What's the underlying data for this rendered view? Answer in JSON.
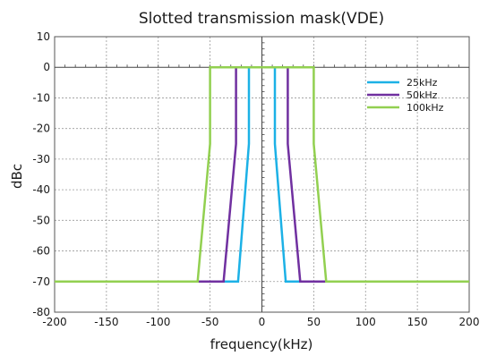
{
  "chart_data": {
    "type": "line",
    "title": "Slotted transmission mask(VDE)",
    "xlabel": "frequency(kHz)",
    "ylabel": "dBc",
    "xlim": [
      -200,
      200
    ],
    "ylim": [
      -80,
      10
    ],
    "xticks": [
      -200,
      -150,
      -100,
      -50,
      0,
      50,
      100,
      150,
      200
    ],
    "yticks": [
      10,
      0,
      -10,
      -20,
      -30,
      -40,
      -50,
      -60,
      -70,
      -80
    ],
    "grid": true,
    "legend_position": "top-right",
    "series": [
      {
        "name": "25kHz",
        "color": "#1cb1e6",
        "x": [
          -200,
          -23,
          -12.5,
          -12.5,
          12.5,
          12.5,
          23,
          200
        ],
        "y": [
          -70,
          -70,
          -25,
          0,
          0,
          -25,
          -70,
          -70
        ]
      },
      {
        "name": "50kHz",
        "color": "#7030a0",
        "x": [
          -200,
          -37,
          -25,
          -25,
          25,
          25,
          37,
          200
        ],
        "y": [
          -70,
          -70,
          -25,
          0,
          0,
          -25,
          -70,
          -70
        ]
      },
      {
        "name": "100kHz",
        "color": "#92d050",
        "x": [
          -200,
          -62,
          -50,
          -50,
          50,
          50,
          62,
          200
        ],
        "y": [
          -70,
          -70,
          -25,
          0,
          0,
          -25,
          -70,
          -70
        ]
      }
    ]
  }
}
